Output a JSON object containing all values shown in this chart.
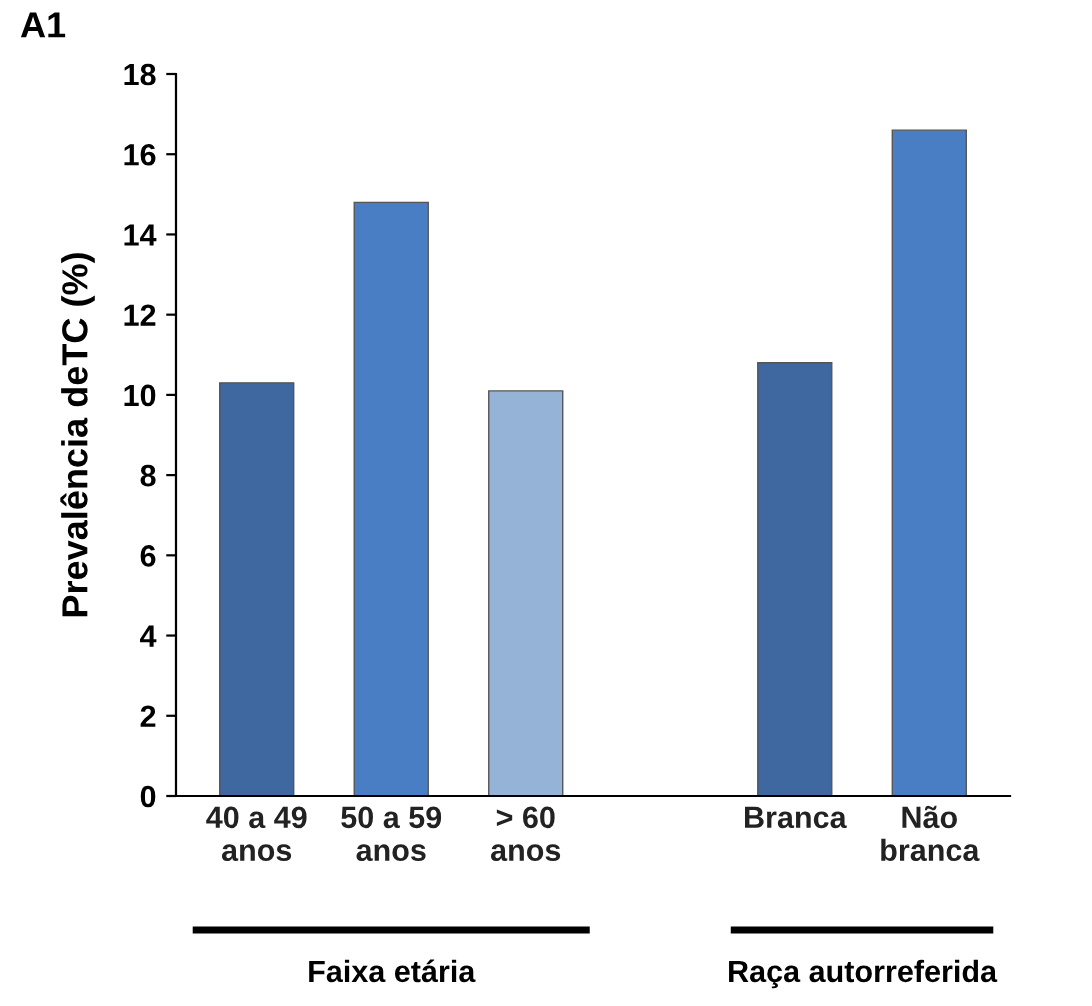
{
  "chart_data": {
    "type": "bar",
    "title": "A1",
    "ylabel": "Prevalência deTC (%)",
    "categories": [
      "40 a 49\nanos",
      "50 a 59\nanos",
      "> 60\nanos",
      null,
      "Branca",
      "Não\nbranca"
    ],
    "values": [
      10.3,
      14.8,
      10.1,
      null,
      10.8,
      16.6
    ],
    "colors": [
      "#3f67a0",
      "#4a7ec4",
      "#95b3d7",
      "#ffffff",
      "#3f67a0",
      "#4a7ec4"
    ],
    "ylim": [
      0,
      18
    ],
    "yticks": [
      0,
      2,
      4,
      6,
      8,
      10,
      12,
      14,
      16,
      18
    ],
    "grid": false,
    "annotations": [
      "Faixa etária",
      "Raça autorreferida"
    ]
  }
}
